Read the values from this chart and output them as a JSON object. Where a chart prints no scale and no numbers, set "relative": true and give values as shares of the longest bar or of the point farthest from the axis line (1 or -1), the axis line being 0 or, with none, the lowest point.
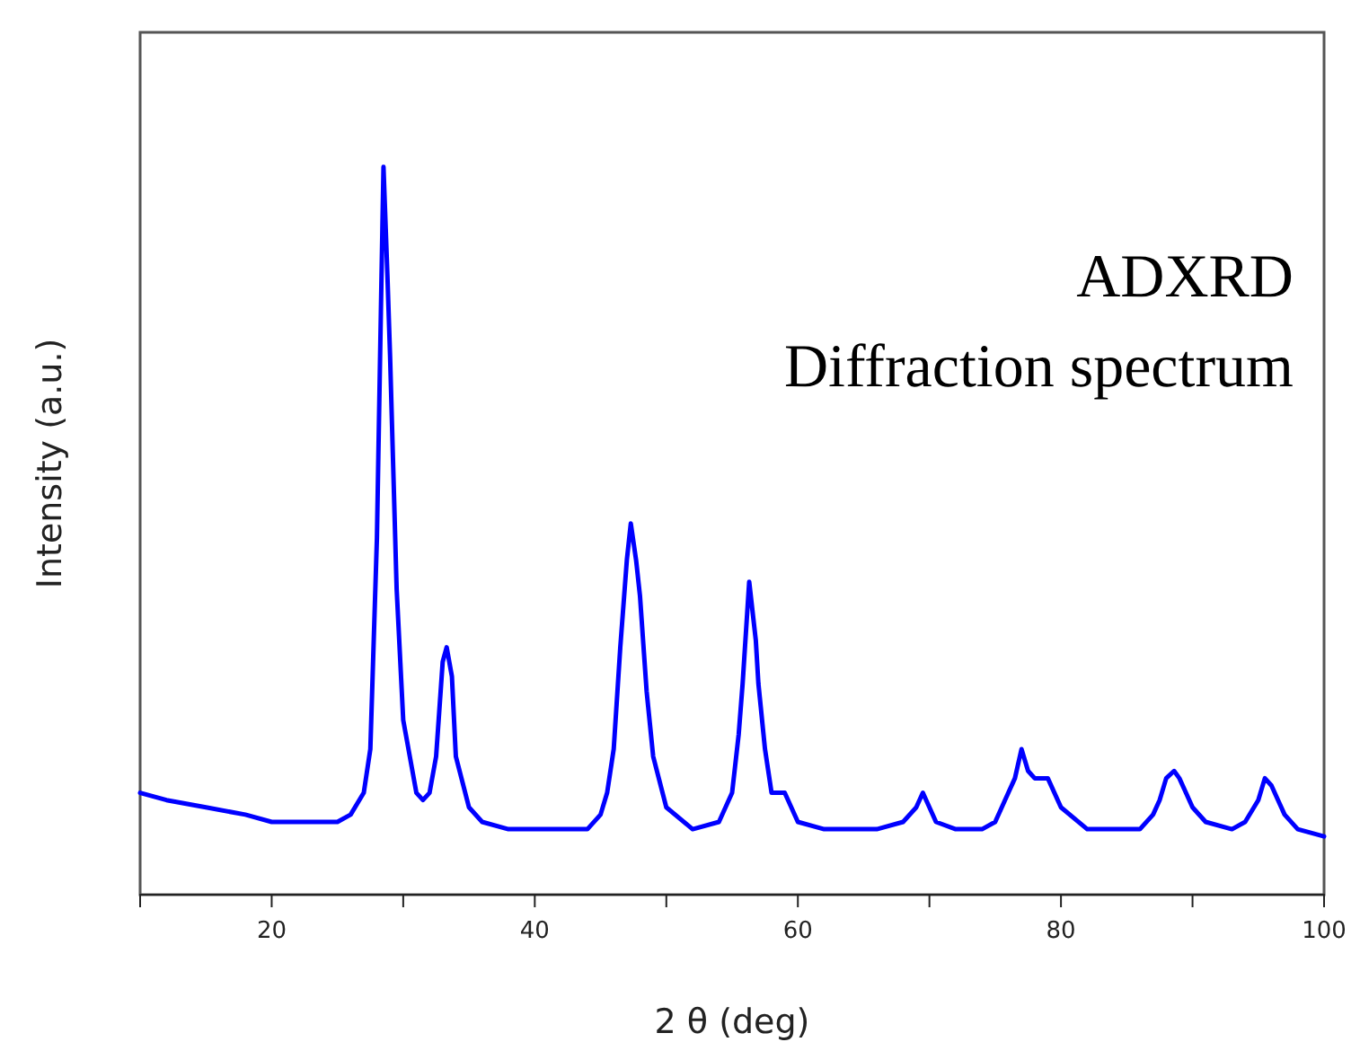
{
  "chart_data": {
    "type": "line",
    "relative": true,
    "tick_labels": "x",
    "xlabel": "2 θ (deg)",
    "ylabel": "Intensity (a.u.)",
    "annotations": [
      "ADXRD",
      "Diffraction spectrum"
    ],
    "xlim": [
      10,
      100
    ],
    "xticks": [
      {
        "value": 10,
        "label": null
      },
      20,
      {
        "value": 30,
        "label": null
      },
      40,
      {
        "value": 50,
        "label": null
      },
      60,
      {
        "value": 70,
        "label": null
      },
      80,
      {
        "value": 90,
        "label": null
      },
      100
    ],
    "x": [
      10,
      12,
      15,
      18,
      20,
      23,
      25,
      26,
      27,
      27.5,
      28,
      28.3,
      28.5,
      28.8,
      29,
      29.5,
      30,
      31,
      31.5,
      32,
      32.5,
      33,
      33.3,
      33.7,
      34,
      35,
      36,
      38,
      40,
      42,
      44,
      45,
      45.5,
      46,
      46.5,
      47,
      47.3,
      47.7,
      48,
      48.5,
      49,
      50,
      52,
      54,
      55,
      55.5,
      55.8,
      56.3,
      56.8,
      57,
      57.5,
      58,
      59,
      60,
      62,
      64,
      66,
      68,
      69,
      69.5,
      70,
      70.5,
      72,
      74,
      75,
      76,
      76.5,
      77,
      77.5,
      78,
      79,
      80,
      82,
      84,
      86,
      87,
      87.5,
      88,
      88.6,
      89,
      89.5,
      90,
      91,
      93,
      94,
      95,
      95.5,
      96,
      96.5,
      97,
      98,
      100
    ],
    "series": [
      {
        "color": "#0000ff",
        "values": [
          0.14,
          0.13,
          0.12,
          0.11,
          0.1,
          0.1,
          0.1,
          0.11,
          0.14,
          0.2,
          0.49,
          0.8,
          1,
          0.85,
          0.74,
          0.42,
          0.24,
          0.14,
          0.13,
          0.14,
          0.19,
          0.32,
          0.34,
          0.3,
          0.19,
          0.12,
          0.1,
          0.09,
          0.09,
          0.09,
          0.09,
          0.11,
          0.14,
          0.2,
          0.34,
          0.46,
          0.51,
          0.46,
          0.41,
          0.28,
          0.19,
          0.12,
          0.09,
          0.1,
          0.14,
          0.22,
          0.29,
          0.43,
          0.35,
          0.29,
          0.2,
          0.14,
          0.14,
          0.1,
          0.09,
          0.09,
          0.09,
          0.1,
          0.12,
          0.14,
          0.12,
          0.1,
          0.09,
          0.09,
          0.1,
          0.14,
          0.16,
          0.2,
          0.17,
          0.16,
          0.16,
          0.12,
          0.09,
          0.09,
          0.09,
          0.11,
          0.13,
          0.16,
          0.17,
          0.16,
          0.14,
          0.12,
          0.1,
          0.09,
          0.1,
          0.13,
          0.16,
          0.15,
          0.13,
          0.11,
          0.09,
          0.08
        ]
      }
    ]
  }
}
